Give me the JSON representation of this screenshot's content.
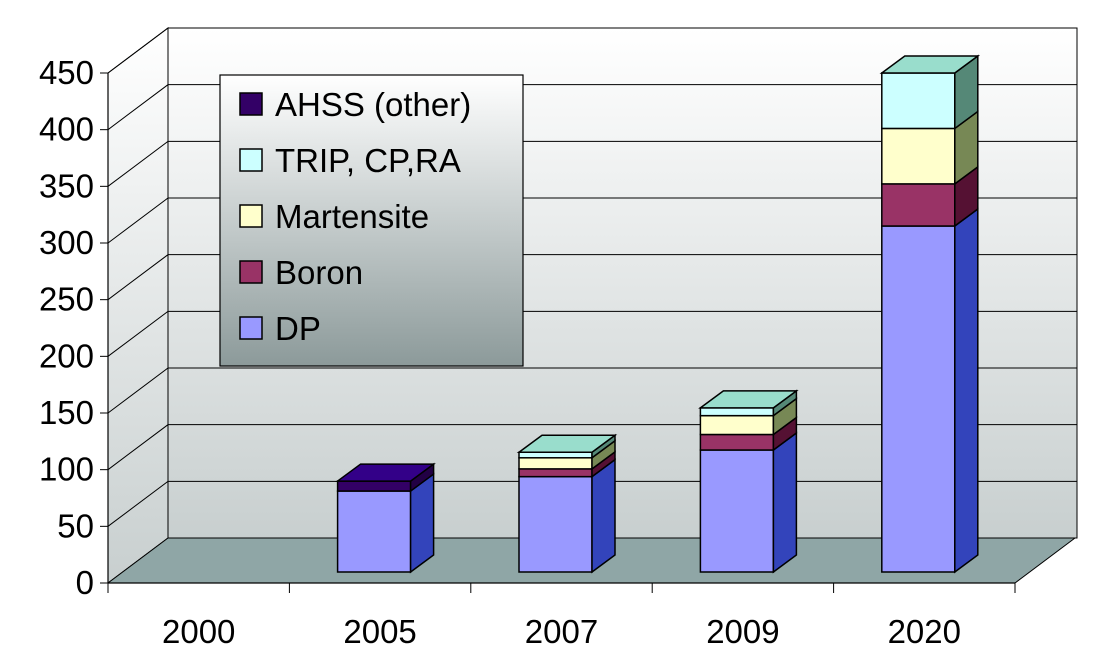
{
  "chart_data": {
    "type": "bar",
    "stacked": true,
    "three_d": true,
    "categories": [
      "2000",
      "2005",
      "2007",
      "2009",
      "2020"
    ],
    "series": [
      {
        "name": "DP",
        "color": "#9999ff",
        "side_color": "#3344bb",
        "top_color": "#b8b8ff",
        "values": [
          0,
          73,
          86,
          110,
          312
        ]
      },
      {
        "name": "Boron",
        "color": "#993366",
        "side_color": "#551133",
        "top_color": "#b05080",
        "values": [
          0,
          0,
          7,
          14,
          38
        ]
      },
      {
        "name": "Martensite",
        "color": "#ffffcc",
        "side_color": "#778855",
        "top_color": "#ffffdd",
        "values": [
          0,
          0,
          10,
          17,
          50
        ]
      },
      {
        "name": "TRIP, CP,RA",
        "color": "#ccffff",
        "side_color": "#558877",
        "top_color": "#99ddcc",
        "values": [
          0,
          0,
          5,
          7,
          50
        ]
      },
      {
        "name": "AHSS (other)",
        "color": "#330066",
        "side_color": "#220044",
        "top_color": "#330088",
        "values": [
          0,
          9,
          0,
          0,
          0
        ]
      }
    ],
    "legend_order": [
      "AHSS (other)",
      "TRIP, CP,RA",
      "Martensite",
      "Boron",
      "DP"
    ],
    "yticks": [
      "0",
      "50",
      "100",
      "150",
      "200",
      "250",
      "300",
      "350",
      "400",
      "450"
    ],
    "ylim": [
      0,
      450
    ],
    "grid": true,
    "legend_position": "top-left",
    "colors": {
      "floor": "#8fa6a6",
      "wall_top": "#ffffff",
      "wall_bottom": "#c8cfcf",
      "legend_top": "#ffffff",
      "legend_bottom": "#8c9a9a"
    }
  }
}
